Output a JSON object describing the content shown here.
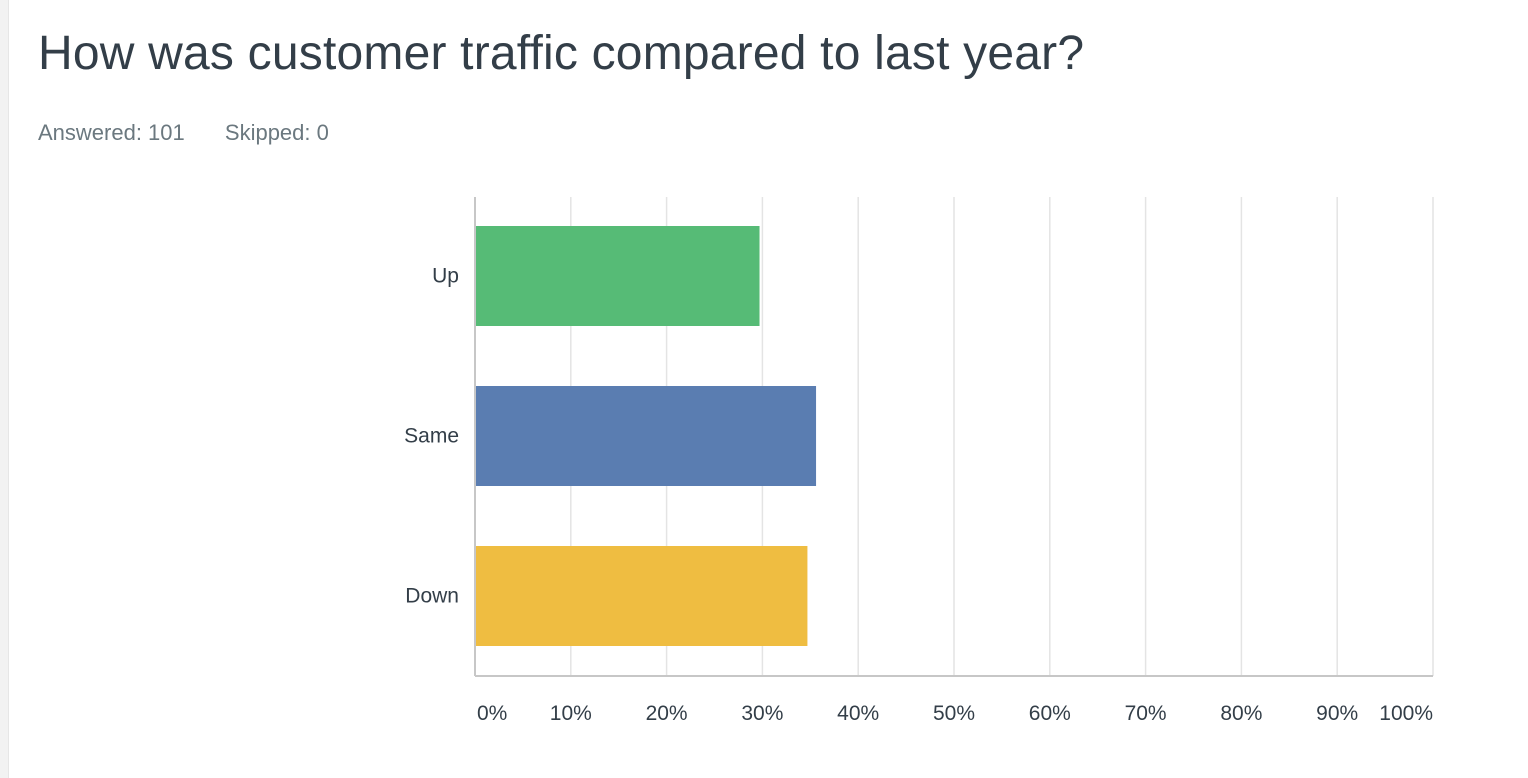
{
  "question": {
    "title": "How was customer traffic compared to last year?",
    "answered_label": "Answered: 101",
    "skipped_label": "Skipped: 0"
  },
  "colors": {
    "up": "#56bb76",
    "same": "#5a7db1",
    "down": "#efbd41",
    "grid": "#e4e4e4",
    "axis": "#c7c7c7",
    "text": "#333e48"
  },
  "chart_data": {
    "type": "bar",
    "orientation": "horizontal",
    "categories": [
      "Up",
      "Same",
      "Down"
    ],
    "values": [
      29.7,
      35.6,
      34.7
    ],
    "unit": "%",
    "xlim": [
      0,
      100
    ],
    "x_ticks": [
      "0%",
      "10%",
      "20%",
      "30%",
      "40%",
      "50%",
      "60%",
      "70%",
      "80%",
      "90%",
      "100%"
    ],
    "grid": true,
    "legend": "none"
  }
}
